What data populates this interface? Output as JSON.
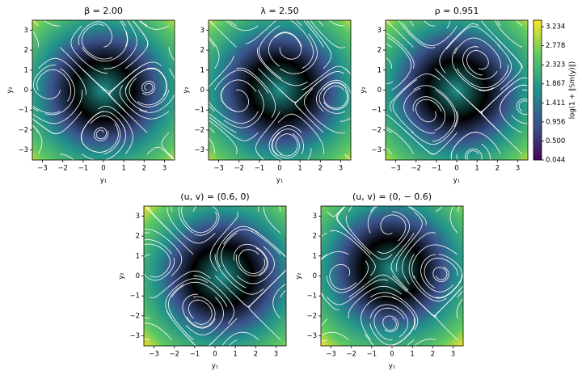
{
  "chart_data": [
    {
      "type": "streamplot",
      "title": "β = 2.00",
      "xlabel": "y₁",
      "ylabel": "y₂",
      "colormap": "viridis",
      "xlim": [
        -3.5,
        3.5
      ],
      "ylim": [
        -3.5,
        3.5
      ],
      "xticks": [
        {
          "value": -3,
          "label": "−3"
        },
        {
          "value": -2,
          "label": "−2"
        },
        {
          "value": -1,
          "label": "−1"
        },
        0,
        1,
        2,
        3
      ],
      "yticks": [
        {
          "value": -3,
          "label": "−3"
        },
        {
          "value": -2,
          "label": "−2"
        },
        {
          "value": -1,
          "label": "−1"
        },
        0,
        1,
        2,
        3
      ]
    },
    {
      "type": "streamplot",
      "title": "λ = 2.50",
      "xlabel": "y₁",
      "ylabel": "y₂",
      "colormap": "viridis",
      "xlim": [
        -3.5,
        3.5
      ],
      "ylim": [
        -3.5,
        3.5
      ],
      "xticks": [
        {
          "value": -3,
          "label": "−3"
        },
        {
          "value": -2,
          "label": "−2"
        },
        {
          "value": -1,
          "label": "−1"
        },
        0,
        1,
        2,
        3
      ],
      "yticks": [
        {
          "value": -3,
          "label": "−3"
        },
        {
          "value": -2,
          "label": "−2"
        },
        {
          "value": -1,
          "label": "−1"
        },
        0,
        1,
        2,
        3
      ]
    },
    {
      "type": "streamplot",
      "title": "ρ = 0.951",
      "xlabel": "y₁",
      "ylabel": "y₂",
      "colormap": "viridis",
      "xlim": [
        -3.5,
        3.5
      ],
      "ylim": [
        -3.5,
        3.5
      ],
      "xticks": [
        {
          "value": -3,
          "label": "−3"
        },
        {
          "value": -2,
          "label": "−2"
        },
        {
          "value": -1,
          "label": "−1"
        },
        0,
        1,
        2,
        3
      ],
      "yticks": [
        {
          "value": -3,
          "label": "−3"
        },
        {
          "value": -2,
          "label": "−2"
        },
        {
          "value": -1,
          "label": "−1"
        },
        0,
        1,
        2,
        3
      ],
      "colorbar": {
        "label": "log(1 + ‖𝕊m(y)‖)",
        "lim": [
          0.044,
          3.39
        ],
        "ticks": [
          0.044,
          {
            "value": 0.5,
            "label": "0.500"
          },
          0.956,
          1.411,
          1.867,
          2.323,
          2.778,
          3.234
        ]
      }
    },
    {
      "type": "streamplot",
      "title": "(u, v) = (0.6, 0)",
      "xlabel": "y₁",
      "ylabel": "y₂",
      "colormap": "viridis",
      "xlim": [
        -3.5,
        3.5
      ],
      "ylim": [
        -3.5,
        3.5
      ],
      "xticks": [
        {
          "value": -3,
          "label": "−3"
        },
        {
          "value": -2,
          "label": "−2"
        },
        {
          "value": -1,
          "label": "−1"
        },
        0,
        1,
        2,
        3
      ],
      "yticks": [
        {
          "value": -3,
          "label": "−3"
        },
        {
          "value": -2,
          "label": "−2"
        },
        {
          "value": -1,
          "label": "−1"
        },
        0,
        1,
        2,
        3
      ]
    },
    {
      "type": "streamplot",
      "title": "(u, v) = (0, − 0.6)",
      "xlabel": "y₁",
      "ylabel": "y₂",
      "colormap": "viridis",
      "xlim": [
        -3.5,
        3.5
      ],
      "ylim": [
        -3.5,
        3.5
      ],
      "xticks": [
        {
          "value": -3,
          "label": "−3"
        },
        {
          "value": -2,
          "label": "−2"
        },
        {
          "value": -1,
          "label": "−1"
        },
        0,
        1,
        2,
        3
      ],
      "yticks": [
        {
          "value": -3,
          "label": "−3"
        },
        {
          "value": -2,
          "label": "−2"
        },
        {
          "value": -1,
          "label": "−1"
        },
        0,
        1,
        2,
        3
      ]
    }
  ]
}
